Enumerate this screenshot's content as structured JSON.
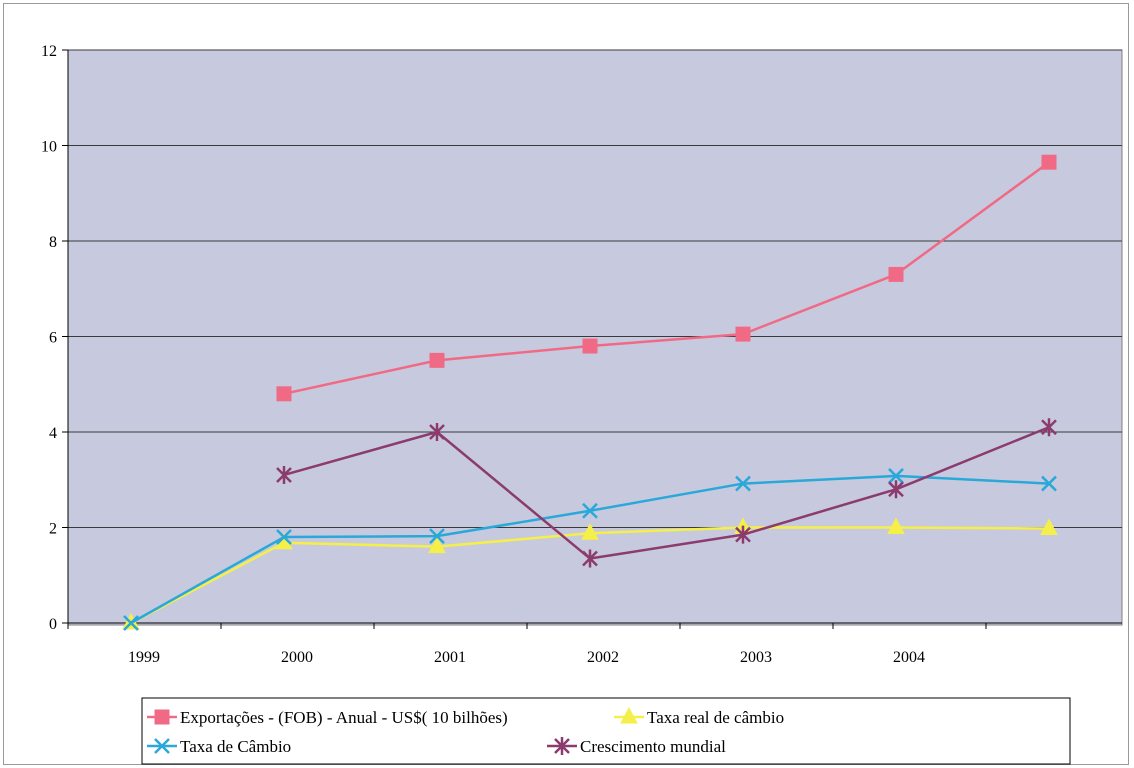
{
  "chart_data": {
    "type": "line",
    "categories": [
      "1999",
      "2000",
      "2001",
      "2002",
      "2003",
      "2004",
      ""
    ],
    "ylim": [
      0,
      12
    ],
    "yticks": [
      0,
      2,
      4,
      6,
      8,
      10,
      12
    ],
    "grid": true,
    "legend_position": "bottom",
    "series": [
      {
        "name": "Exportações - (FOB) - Anual - US$( 10 bilhões)",
        "color": "#f06a85",
        "marker": "square",
        "values": [
          null,
          4.8,
          5.5,
          5.8,
          6.05,
          7.3,
          9.65
        ]
      },
      {
        "name": "Taxa real de câmbio",
        "color": "#f5ef4a",
        "marker": "triangle",
        "values": [
          0,
          1.68,
          1.6,
          1.88,
          2.0,
          2.0,
          1.98
        ]
      },
      {
        "name": "Taxa de Câmbio",
        "color": "#2aa8d9",
        "marker": "x",
        "values": [
          0,
          1.8,
          1.82,
          2.35,
          2.92,
          3.08,
          2.92
        ]
      },
      {
        "name": "Crescimento mundial",
        "color": "#8b3b6e",
        "marker": "star",
        "values": [
          null,
          3.1,
          4.0,
          1.35,
          1.85,
          2.8,
          4.1
        ]
      }
    ]
  }
}
